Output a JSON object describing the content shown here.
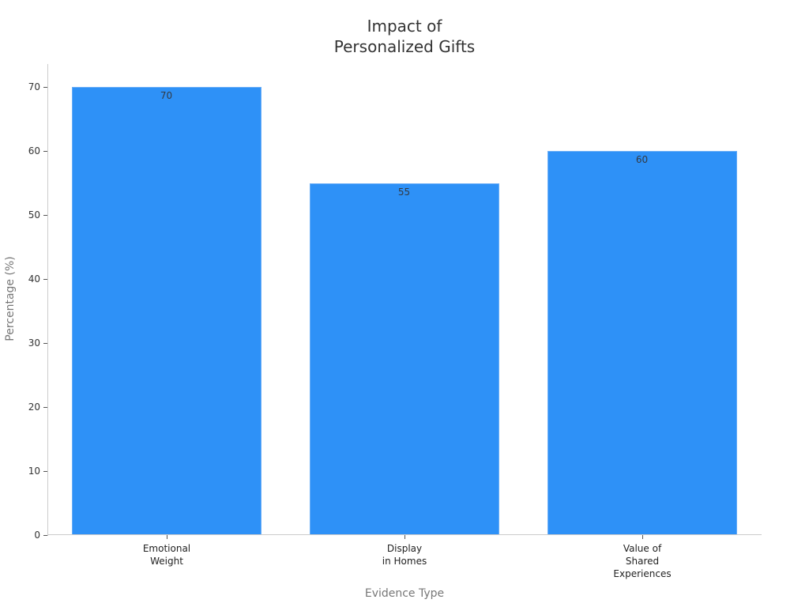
{
  "chart_data": {
    "type": "bar",
    "title": "Impact of Personalized Gifts",
    "title_lines": [
      "Impact of",
      "Personalized Gifts"
    ],
    "xlabel": "Evidence Type",
    "ylabel": "Percentage (%)",
    "categories": [
      "Emotional Weight",
      "Display in Homes",
      "Value of Shared Experiences"
    ],
    "category_lines": [
      [
        "Emotional",
        "Weight"
      ],
      [
        "Display",
        "in Homes"
      ],
      [
        "Value of",
        "Shared",
        "Experiences"
      ]
    ],
    "values": [
      70,
      55,
      60
    ],
    "value_labels": [
      "70",
      "55",
      "60"
    ],
    "yticks": [
      0,
      10,
      20,
      30,
      40,
      50,
      60,
      70
    ],
    "ytick_labels": [
      "0",
      "10",
      "20",
      "30",
      "40",
      "50",
      "60",
      "70"
    ],
    "ylim": [
      0,
      73.6
    ],
    "grid": false,
    "legend": null,
    "colors": {
      "bar": "#2e91f7",
      "bar_edge": "#6aaef7",
      "axis": "#cccccc"
    }
  }
}
